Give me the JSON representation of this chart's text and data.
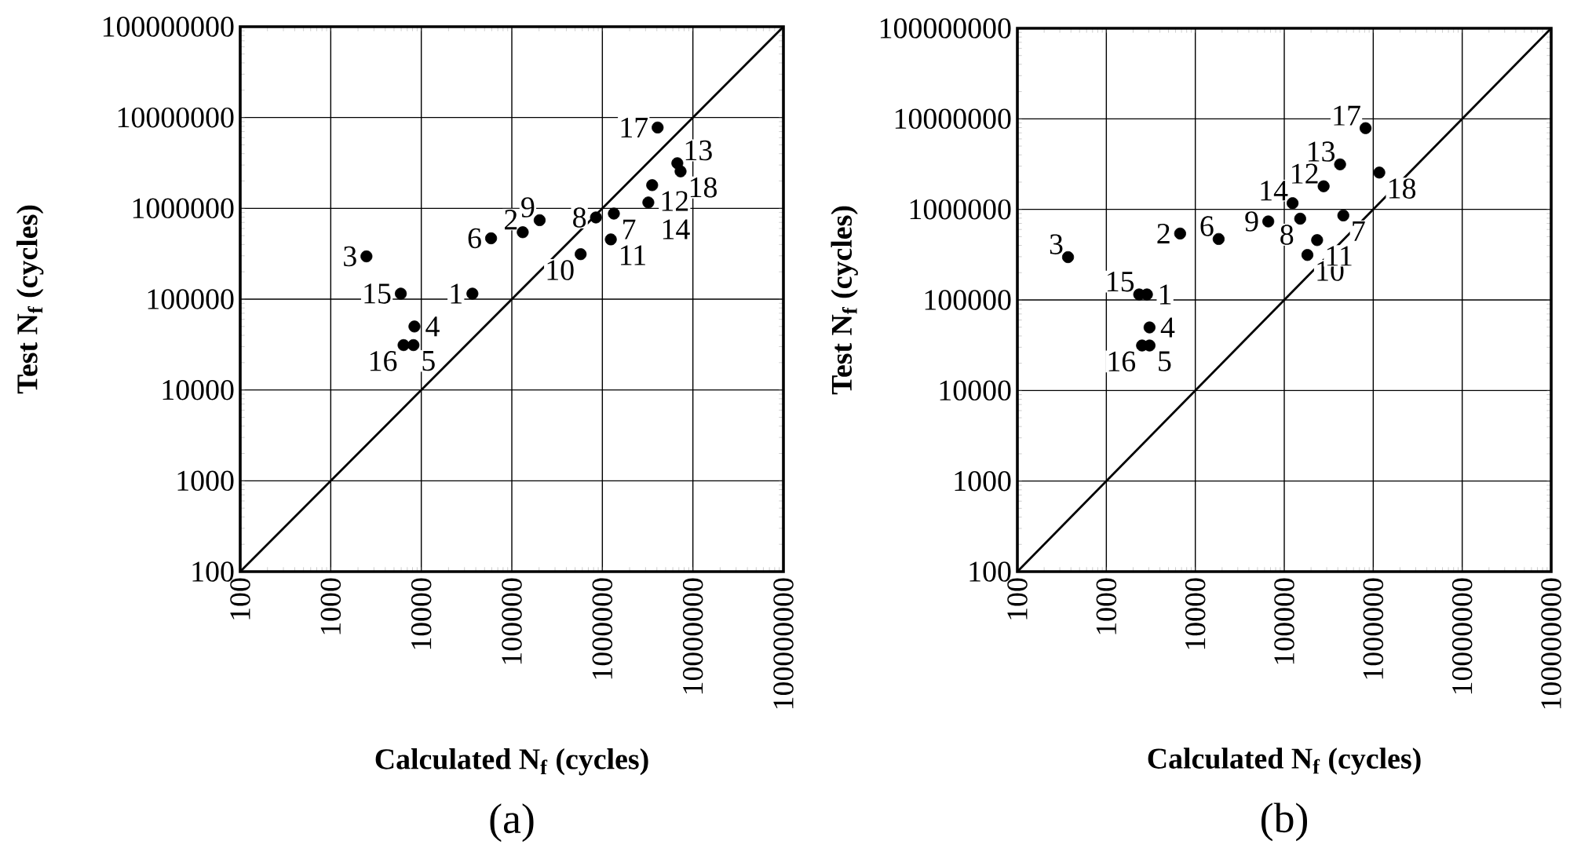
{
  "chart_data": [
    {
      "type": "scatter",
      "title": "(a)",
      "xlabel": "Calculated N$_{f}$  (cycles)",
      "ylabel": "Test N$_{f}$  (cycles)",
      "log": "xy",
      "grid": true,
      "marker": "circle",
      "xlim": [
        100,
        100000000
      ],
      "ylim": [
        100,
        100000000
      ],
      "xticks": [
        100,
        1000,
        10000,
        100000,
        1000000,
        10000000,
        100000000
      ],
      "yticks": [
        100,
        1000,
        10000,
        100000,
        1000000,
        10000000,
        100000000
      ],
      "series": [
        {
          "color": "#000000",
          "x": [
            36700,
            132000,
            2480,
            8400,
            8200,
            59000,
            1340000,
            850000,
            203000,
            576000,
            1240000,
            3550000,
            6730000,
            3220000,
            5940,
            6370,
            4080000,
            7310000
          ],
          "values": [
            115000,
            546000,
            296000,
            50000,
            31200,
            468000,
            875000,
            794000,
            741000,
            313000,
            455000,
            1800000,
            3140000,
            1160000,
            115000,
            31200,
            7760000,
            2550000
          ]
        },
        {
          "type": "line",
          "color": "#000000",
          "marker": "none",
          "line_style": "solid",
          "x": [
            100,
            100000000
          ],
          "values": [
            100,
            100000000
          ]
        }
      ],
      "annotations": [
        {
          "text": "1",
          "x": 36700,
          "y": 115000
        },
        {
          "text": "2",
          "x": 132000,
          "y": 546000
        },
        {
          "text": "3",
          "x": 2480,
          "y": 296000
        },
        {
          "text": "4",
          "x": 8400,
          "y": 50000
        },
        {
          "text": "5",
          "x": 8200,
          "y": 31200
        },
        {
          "text": "6",
          "x": 59000,
          "y": 468000
        },
        {
          "text": "7",
          "x": 1340000,
          "y": 875000
        },
        {
          "text": "8",
          "x": 850000,
          "y": 794000
        },
        {
          "text": "9",
          "x": 203000,
          "y": 741000
        },
        {
          "text": "10",
          "x": 576000,
          "y": 313000
        },
        {
          "text": "11",
          "x": 1240000,
          "y": 455000
        },
        {
          "text": "12",
          "x": 3550000,
          "y": 1800000
        },
        {
          "text": "13",
          "x": 6730000,
          "y": 3140000
        },
        {
          "text": "14",
          "x": 3220000,
          "y": 1160000
        },
        {
          "text": "15",
          "x": 5940,
          "y": 115000
        },
        {
          "text": "16",
          "x": 6370,
          "y": 31200
        },
        {
          "text": "17",
          "x": 4080000,
          "y": 7760000
        },
        {
          "text": "18",
          "x": 7310000,
          "y": 2550000
        }
      ]
    },
    {
      "type": "scatter",
      "title": "(b)",
      "xlabel": "Calculated N$_{f}$  (cycles)",
      "ylabel": "Test N$_{f}$  (cycles)",
      "log": "xy",
      "grid": true,
      "marker": "circle",
      "xlim": [
        100,
        100000000
      ],
      "ylim": [
        100,
        100000000
      ],
      "xticks": [
        100,
        1000,
        10000,
        100000,
        1000000,
        10000000,
        100000000
      ],
      "yticks": [
        100,
        1000,
        10000,
        100000,
        1000000,
        10000000,
        100000000
      ],
      "series": [
        {
          "color": "#000000",
          "x": [
            2860,
            6750,
            371,
            3060,
            3060,
            18300,
            461000,
            151000,
            66100,
            182000,
            234000,
            277000,
            424000,
            124000,
            2340,
            2520,
            820000,
            1170000
          ],
          "values": [
            115000,
            541000,
            297000,
            49700,
            31400,
            471000,
            857000,
            789000,
            736000,
            314000,
            458000,
            1800000,
            3140000,
            1170000,
            115000,
            31400,
            7890000,
            2550000
          ]
        },
        {
          "type": "line",
          "color": "#000000",
          "marker": "none",
          "line_style": "solid",
          "x": [
            100,
            100000000
          ],
          "values": [
            100,
            100000000
          ]
        }
      ],
      "annotations": [
        {
          "text": "1",
          "x": 2860,
          "y": 115000
        },
        {
          "text": "2",
          "x": 6750,
          "y": 541000
        },
        {
          "text": "3",
          "x": 371,
          "y": 297000
        },
        {
          "text": "4",
          "x": 3060,
          "y": 49700
        },
        {
          "text": "5",
          "x": 3060,
          "y": 31400
        },
        {
          "text": "6",
          "x": 18300,
          "y": 471000
        },
        {
          "text": "7",
          "x": 461000,
          "y": 857000
        },
        {
          "text": "8",
          "x": 151000,
          "y": 789000
        },
        {
          "text": "9",
          "x": 66100,
          "y": 736000
        },
        {
          "text": "10",
          "x": 182000,
          "y": 314000
        },
        {
          "text": "11",
          "x": 234000,
          "y": 458000
        },
        {
          "text": "12",
          "x": 277000,
          "y": 1800000
        },
        {
          "text": "13",
          "x": 424000,
          "y": 3140000
        },
        {
          "text": "14",
          "x": 124000,
          "y": 1170000
        },
        {
          "text": "15",
          "x": 2340,
          "y": 115000
        },
        {
          "text": "16",
          "x": 2520,
          "y": 31400
        },
        {
          "text": "17",
          "x": 820000,
          "y": 7890000
        },
        {
          "text": "18",
          "x": 1170000,
          "y": 2550000
        }
      ]
    }
  ]
}
